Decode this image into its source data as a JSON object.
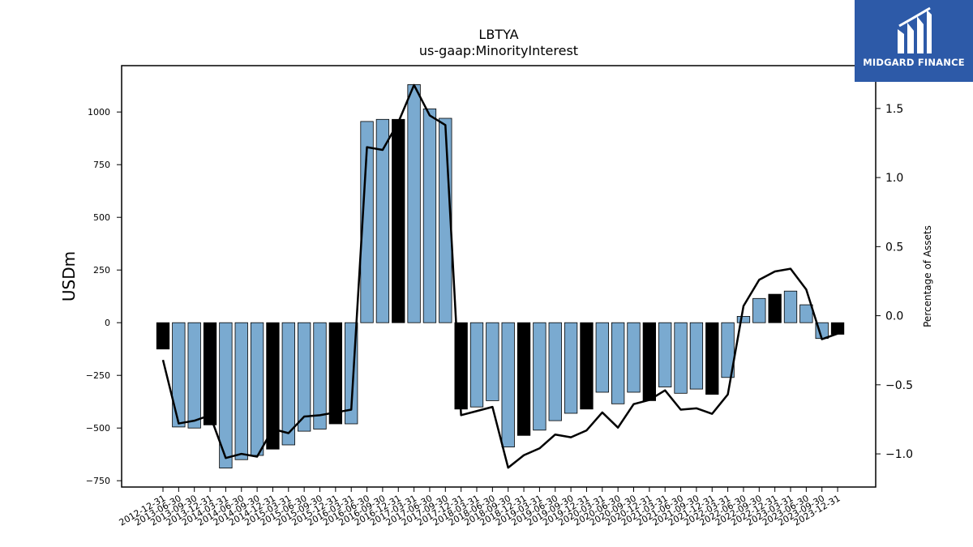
{
  "chart_data": {
    "type": "bar",
    "title": "LBTYA",
    "subtitle": "us-gaap:MinorityInterest",
    "ylabel": "USDm",
    "y2label": "Percentage of Assets",
    "ylim": [
      -780,
      1220
    ],
    "y2lim": [
      -1.24,
      1.81
    ],
    "yticks": [
      -750,
      -500,
      -250,
      0,
      250,
      500,
      750,
      1000
    ],
    "y2ticks": [
      -1.0,
      -0.5,
      0.0,
      0.5,
      1.0,
      1.5
    ],
    "categories": [
      "2012-12-31",
      "2013-06-30",
      "2013-09-30",
      "2013-12-31",
      "2014-03-31",
      "2014-06-30",
      "2014-09-30",
      "2014-12-31",
      "2015-03-31",
      "2015-06-30",
      "2015-09-30",
      "2015-12-31",
      "2016-03-31",
      "2016-06-30",
      "2016-09-30",
      "2016-12-31",
      "2017-03-31",
      "2017-06-30",
      "2017-09-30",
      "2017-12-31",
      "2018-03-31",
      "2018-06-30",
      "2018-09-30",
      "2018-12-31",
      "2019-03-31",
      "2019-06-30",
      "2019-09-30",
      "2019-12-31",
      "2020-03-31",
      "2020-06-30",
      "2020-09-30",
      "2020-12-31",
      "2021-03-31",
      "2021-06-30",
      "2021-09-30",
      "2021-12-31",
      "2022-03-31",
      "2022-06-30",
      "2022-09-30",
      "2022-12-31",
      "2023-03-31",
      "2023-06-30",
      "2023-09-30",
      "2023-12-31"
    ],
    "series": [
      {
        "type": "bar",
        "values": [
          -125,
          -495,
          -500,
          -485,
          -690,
          -650,
          -630,
          -600,
          -580,
          -515,
          -505,
          -480,
          -480,
          955,
          965,
          965,
          1130,
          1015,
          970,
          -410,
          -400,
          -370,
          -590,
          -535,
          -510,
          -465,
          -430,
          -410,
          -330,
          -385,
          -330,
          -370,
          -305,
          -335,
          -315,
          -340,
          -260,
          30,
          115,
          135,
          150,
          85,
          -75,
          -55
        ],
        "highlight": [
          true,
          false,
          false,
          true,
          false,
          false,
          false,
          true,
          false,
          false,
          false,
          true,
          false,
          false,
          false,
          true,
          false,
          false,
          false,
          true,
          false,
          false,
          false,
          true,
          false,
          false,
          false,
          true,
          false,
          false,
          false,
          true,
          false,
          false,
          false,
          true,
          false,
          false,
          false,
          true,
          false,
          false,
          false,
          true
        ]
      },
      {
        "type": "line",
        "axis": "right",
        "values": [
          -0.32,
          -0.78,
          -0.76,
          -0.72,
          -1.03,
          -1.0,
          -1.02,
          -0.82,
          -0.85,
          -0.73,
          -0.72,
          -0.7,
          -0.68,
          1.22,
          1.2,
          1.4,
          1.67,
          1.45,
          1.38,
          -0.72,
          -0.69,
          -0.66,
          -1.1,
          -1.01,
          -0.96,
          -0.86,
          -0.88,
          -0.83,
          -0.7,
          -0.81,
          -0.64,
          -0.61,
          -0.54,
          -0.68,
          -0.67,
          -0.71,
          -0.57,
          0.07,
          0.26,
          0.32,
          0.34,
          0.19,
          -0.17,
          -0.13
        ]
      }
    ],
    "colors": {
      "bar": "#7aaad0",
      "highlight": "#000000",
      "line": "#000000",
      "axis": "#000000"
    },
    "grid": false
  },
  "logo": {
    "text": "MIDGARD FINANCE",
    "icon": "midgard-logo-icon",
    "color": "#2d5aa8"
  }
}
